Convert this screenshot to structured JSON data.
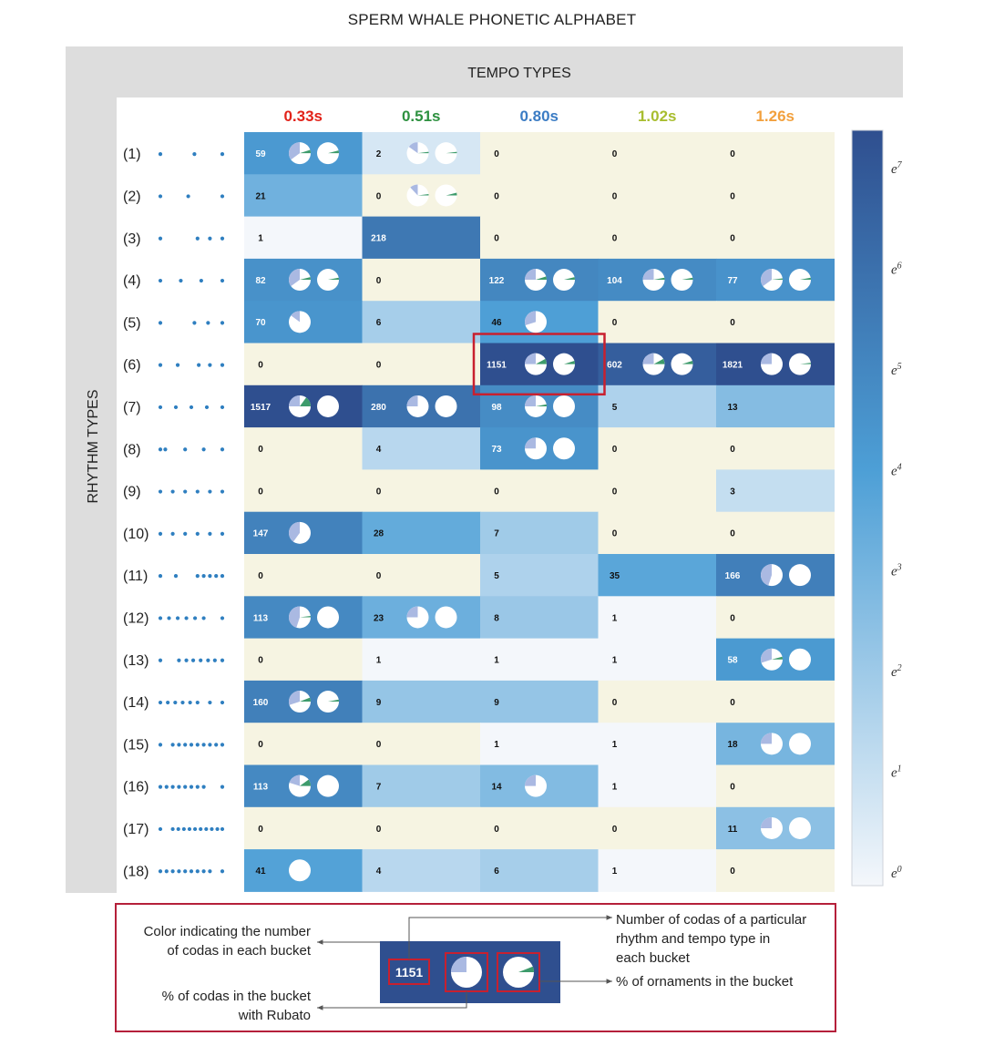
{
  "title": "SPERM WHALE PHONETIC ALPHABET",
  "tempo_header": "TEMPO TYPES",
  "rhythm_header": "RHYTHM TYPES",
  "colors": {
    "tempo": [
      "#e2231a",
      "#2e9140",
      "#3b7cc4",
      "#a8bd2f",
      "#f2a03d"
    ],
    "zero_cell": "#f6f4e2",
    "scale_low": "#f4f7fb",
    "scale_mid": "#4d9fd6",
    "scale_high": "#2f4f8f",
    "highlight": "#c8202f",
    "dot": "#2f7fc0",
    "pie_light": "#aab9e2",
    "pie_green": "#3d9b6b"
  },
  "colorbar_labels": [
    "e7",
    "e6",
    "e5",
    "e4",
    "e3",
    "e2",
    "e1",
    "e0"
  ],
  "legend": {
    "sample_value": "1151",
    "color_text_1": "Color indicating the number",
    "color_text_2": "of codas in each bucket",
    "count_text_1": "Number of codas of a particular",
    "count_text_2": "rhythm and tempo type in",
    "count_text_3": "each bucket",
    "ornament_text": "% of ornaments in the bucket",
    "rubato_text_1": "% of codas in the bucket",
    "rubato_text_2": "with Rubato"
  },
  "chart_data": {
    "type": "heatmap",
    "title": "SPERM WHALE PHONETIC ALPHABET",
    "xlabel": "TEMPO TYPES",
    "ylabel": "RHYTHM TYPES",
    "color_scale": "log (e^0 to e^7)",
    "columns": [
      "0.33s",
      "0.51s",
      "0.80s",
      "1.02s",
      "1.26s"
    ],
    "rows": [
      "(1)",
      "(2)",
      "(3)",
      "(4)",
      "(5)",
      "(6)",
      "(7)",
      "(8)",
      "(9)",
      "(10)",
      "(11)",
      "(12)",
      "(13)",
      "(14)",
      "(15)",
      "(16)",
      "(17)",
      "(18)"
    ],
    "rhythm_patterns": [
      [
        0,
        0.55,
        1
      ],
      [
        0,
        0.45,
        1
      ],
      [
        0,
        0.6,
        0.8,
        1
      ],
      [
        0,
        0.33,
        0.66,
        1
      ],
      [
        0,
        0.55,
        0.77,
        1
      ],
      [
        0,
        0.28,
        0.62,
        0.8,
        1
      ],
      [
        0,
        0.25,
        0.5,
        0.75,
        1
      ],
      [
        0,
        0.08,
        0.4,
        0.7,
        1
      ],
      [
        0,
        0.2,
        0.4,
        0.6,
        0.8,
        1
      ],
      [
        0,
        0.2,
        0.4,
        0.6,
        0.8,
        1
      ],
      [
        0,
        0.25,
        0.6,
        0.7,
        0.8,
        0.9,
        1
      ],
      [
        0,
        0.14,
        0.28,
        0.42,
        0.56,
        0.7,
        1
      ],
      [
        0,
        0.3,
        0.42,
        0.53,
        0.65,
        0.77,
        0.88,
        1
      ],
      [
        0,
        0.12,
        0.24,
        0.36,
        0.48,
        0.6,
        0.8,
        1
      ],
      [
        0,
        0.2,
        0.3,
        0.4,
        0.5,
        0.6,
        0.7,
        0.8,
        0.9,
        1
      ],
      [
        0,
        0.1,
        0.2,
        0.3,
        0.4,
        0.5,
        0.6,
        0.7,
        1
      ],
      [
        0,
        0.2,
        0.29,
        0.38,
        0.47,
        0.56,
        0.65,
        0.74,
        0.83,
        0.92,
        1
      ],
      [
        0,
        0.1,
        0.2,
        0.3,
        0.4,
        0.5,
        0.6,
        0.7,
        0.8,
        1
      ]
    ],
    "values": [
      [
        59,
        2,
        0,
        0,
        0
      ],
      [
        21,
        0,
        0,
        0,
        0
      ],
      [
        1,
        218,
        0,
        0,
        0
      ],
      [
        82,
        0,
        122,
        104,
        77
      ],
      [
        70,
        6,
        46,
        0,
        0
      ],
      [
        0,
        0,
        1151,
        602,
        1821
      ],
      [
        1517,
        280,
        98,
        5,
        13
      ],
      [
        0,
        4,
        73,
        0,
        0
      ],
      [
        0,
        0,
        0,
        0,
        3
      ],
      [
        147,
        28,
        7,
        0,
        0
      ],
      [
        0,
        0,
        5,
        35,
        166
      ],
      [
        113,
        23,
        8,
        1,
        0
      ],
      [
        0,
        1,
        1,
        1,
        58
      ],
      [
        160,
        9,
        9,
        0,
        0
      ],
      [
        0,
        0,
        1,
        1,
        18
      ],
      [
        113,
        7,
        14,
        1,
        0
      ],
      [
        0,
        0,
        0,
        0,
        11
      ],
      [
        41,
        4,
        6,
        1,
        0
      ]
    ],
    "pies": [
      [
        0,
        0,
        0.35,
        0.0,
        1,
        0,
        0.05,
        0.04
      ],
      [
        0,
        1,
        0.15,
        0.0,
        1,
        0,
        0.02,
        0.02
      ],
      [
        1,
        1,
        0.12,
        0.0,
        1,
        0,
        0.02,
        0.04
      ],
      [
        3,
        0,
        0.35,
        0.0,
        1,
        0,
        0.04,
        0.03
      ],
      [
        3,
        2,
        0.25,
        0.0,
        1,
        0,
        0.05,
        0.04
      ],
      [
        3,
        3,
        0.25,
        0.0,
        1,
        0,
        0.03,
        0.03
      ],
      [
        3,
        4,
        0.35,
        0.0,
        1,
        0,
        0.02,
        0.03
      ],
      [
        4,
        0,
        0.15,
        0.0,
        0,
        0,
        0,
        0
      ],
      [
        4,
        2,
        0.3,
        0.0,
        0,
        0,
        0,
        0
      ],
      [
        5,
        2,
        0.25,
        0.0,
        1,
        0,
        0.08,
        0.05
      ],
      [
        5,
        3,
        0.25,
        0.0,
        1,
        0,
        0.08,
        0.05
      ],
      [
        5,
        4,
        0.25,
        0.0,
        1,
        0,
        0.0,
        0.02
      ],
      [
        6,
        0,
        0.25,
        0.08,
        1,
        0,
        0.15,
        0.0
      ],
      [
        6,
        1,
        0.25,
        0.0,
        1,
        0,
        0.0,
        0.0
      ],
      [
        6,
        2,
        0.25,
        0.0,
        1,
        0,
        0.03,
        0.0
      ],
      [
        7,
        2,
        0.25,
        0.0,
        1,
        0,
        0.0,
        0.0
      ],
      [
        9,
        0,
        0.4,
        0.0,
        0,
        0,
        0,
        0
      ],
      [
        10,
        4,
        0.45,
        0.0,
        1,
        0,
        0.0,
        0.0
      ],
      [
        11,
        0,
        0.45,
        0.0,
        1,
        0,
        0.02,
        0.0
      ],
      [
        11,
        1,
        0.25,
        0.0,
        1,
        0,
        0.0,
        0.0
      ],
      [
        12,
        4,
        0.3,
        0.0,
        1,
        0,
        0.04,
        0.0
      ],
      [
        13,
        0,
        0.3,
        0.0,
        1,
        0,
        0.06,
        0.03
      ],
      [
        14,
        4,
        0.25,
        0.0,
        1,
        0,
        0.0,
        0.0
      ],
      [
        15,
        0,
        0.2,
        0.0,
        1,
        0,
        0.1,
        0.0
      ],
      [
        15,
        2,
        0.25,
        0.0,
        0,
        0,
        0,
        0
      ],
      [
        16,
        4,
        0.25,
        0.0,
        1,
        0,
        0.0,
        0.0
      ],
      [
        17,
        0,
        0.0,
        0.0,
        0,
        0,
        0,
        0
      ]
    ],
    "pie_legend": "pies: [row, col, rubato_fraction, second pie rubato offset (unused), second pie shown, reserved, ornament_fraction, ornament_fraction_alt]",
    "highlighted_cell": {
      "row": "(6)",
      "column": "0.80s"
    }
  }
}
